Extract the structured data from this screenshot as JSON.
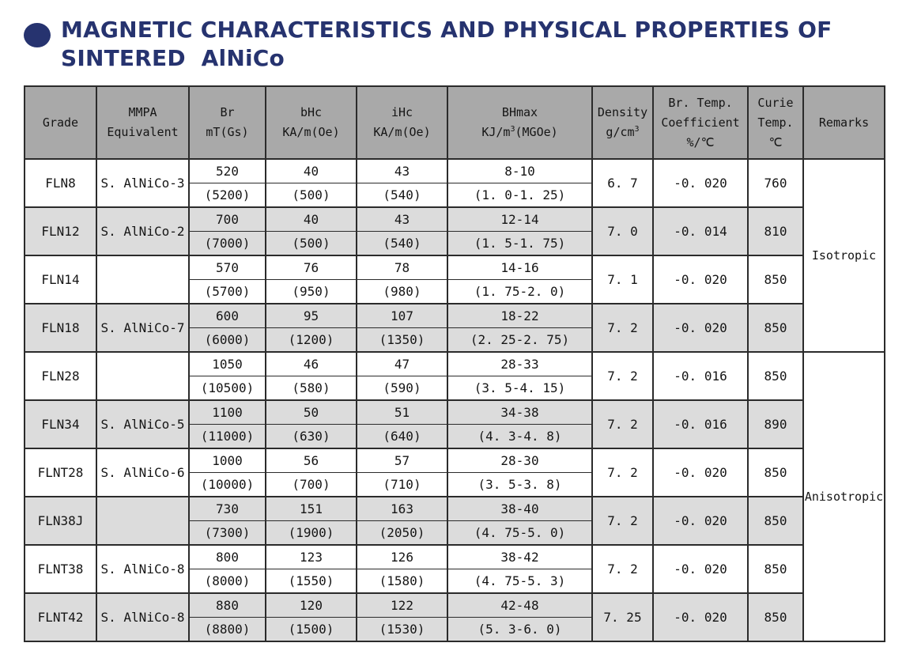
{
  "title": {
    "line1": "MAGNETIC CHARACTERISTICS AND PHYSICAL PROPERTIES OF",
    "line2": "SINTERED  AlNiCo"
  },
  "colors": {
    "title_navy": "#26336f",
    "header_bg": "#a9a9a9",
    "row_shade": "#dcdcdc",
    "border": "#2b2b2b"
  },
  "table": {
    "header": {
      "grade": "Grade",
      "mmpa_line1": "MMPA",
      "mmpa_line2": "Equivalent",
      "br_line1": "Br",
      "br_line2": "mT(Gs)",
      "bhc_line1": "bHc",
      "bhc_line2": "KA/m(Oe)",
      "ihc_line1": "iHc",
      "ihc_line2": "KA/m(Oe)",
      "bhmax_line1": "BHmax",
      "bhmax_unit_pre": "KJ/m",
      "bhmax_sup": "3",
      "bhmax_unit_post": "(MGOe)",
      "density_line1": "Density",
      "density_unit_pre": "g/cm",
      "density_sup": "3",
      "coef_line1": "Br. Temp.",
      "coef_line2": "Coefficient",
      "coef_line3": "%/℃",
      "curie_line1": "Curie",
      "curie_line2": "Temp.",
      "curie_line3": "℃",
      "remarks": "Remarks"
    },
    "rows": [
      {
        "grade": "FLN8",
        "mmpa": "S. AlNiCo-3",
        "br": [
          "520",
          "(5200)"
        ],
        "bhc": [
          "40",
          "(500)"
        ],
        "ihc": [
          "43",
          "(540)"
        ],
        "bhmax": [
          "8-10",
          "(1. 0-1. 25)"
        ],
        "density": "6. 7",
        "coef": "-0. 020",
        "curie": "760"
      },
      {
        "grade": "FLN12",
        "mmpa": "S. AlNiCo-2",
        "br": [
          "700",
          "(7000)"
        ],
        "bhc": [
          "40",
          "(500)"
        ],
        "ihc": [
          "43",
          "(540)"
        ],
        "bhmax": [
          "12-14",
          "(1. 5-1. 75)"
        ],
        "density": "7. 0",
        "coef": "-0. 014",
        "curie": "810"
      },
      {
        "grade": "FLN14",
        "mmpa": "",
        "br": [
          "570",
          "(5700)"
        ],
        "bhc": [
          "76",
          "(950)"
        ],
        "ihc": [
          "78",
          "(980)"
        ],
        "bhmax": [
          "14-16",
          "(1. 75-2. 0)"
        ],
        "density": "7. 1",
        "coef": "-0. 020",
        "curie": "850"
      },
      {
        "grade": "FLN18",
        "mmpa": "S. AlNiCo-7",
        "br": [
          "600",
          "(6000)"
        ],
        "bhc": [
          "95",
          "(1200)"
        ],
        "ihc": [
          "107",
          "(1350)"
        ],
        "bhmax": [
          "18-22",
          "(2. 25-2. 75)"
        ],
        "density": "7. 2",
        "coef": "-0. 020",
        "curie": "850"
      },
      {
        "grade": "FLN28",
        "mmpa": "",
        "br": [
          "1050",
          "(10500)"
        ],
        "bhc": [
          "46",
          "(580)"
        ],
        "ihc": [
          "47",
          "(590)"
        ],
        "bhmax": [
          "28-33",
          "(3. 5-4. 15)"
        ],
        "density": "7. 2",
        "coef": "-0. 016",
        "curie": "850"
      },
      {
        "grade": "FLN34",
        "mmpa": "S. AlNiCo-5",
        "br": [
          "1100",
          "(11000)"
        ],
        "bhc": [
          "50",
          "(630)"
        ],
        "ihc": [
          "51",
          "(640)"
        ],
        "bhmax": [
          "34-38",
          "(4. 3-4. 8)"
        ],
        "density": "7. 2",
        "coef": "-0. 016",
        "curie": "890"
      },
      {
        "grade": "FLNT28",
        "mmpa": "S. AlNiCo-6",
        "br": [
          "1000",
          "(10000)"
        ],
        "bhc": [
          "56",
          "(700)"
        ],
        "ihc": [
          "57",
          "(710)"
        ],
        "bhmax": [
          "28-30",
          "(3. 5-3. 8)"
        ],
        "density": "7. 2",
        "coef": "-0. 020",
        "curie": "850"
      },
      {
        "grade": "FLN38J",
        "mmpa": "",
        "br": [
          "730",
          "(7300)"
        ],
        "bhc": [
          "151",
          "(1900)"
        ],
        "ihc": [
          "163",
          "(2050)"
        ],
        "bhmax": [
          "38-40",
          "(4. 75-5. 0)"
        ],
        "density": "7. 2",
        "coef": "-0. 020",
        "curie": "850"
      },
      {
        "grade": "FLNT38",
        "mmpa": "S. AlNiCo-8",
        "br": [
          "800",
          "(8000)"
        ],
        "bhc": [
          "123",
          "(1550)"
        ],
        "ihc": [
          "126",
          "(1580)"
        ],
        "bhmax": [
          "38-42",
          "(4. 75-5. 3)"
        ],
        "density": "7. 2",
        "coef": "-0. 020",
        "curie": "850"
      },
      {
        "grade": "FLNT42",
        "mmpa": "S. AlNiCo-8",
        "br": [
          "880",
          "(8800)"
        ],
        "bhc": [
          "120",
          "(1500)"
        ],
        "ihc": [
          "122",
          "(1530)"
        ],
        "bhmax": [
          "42-48",
          "(5. 3-6. 0)"
        ],
        "density": "7. 25",
        "coef": "-0. 020",
        "curie": "850"
      }
    ],
    "remarks_groups": [
      {
        "label": "Isotropic",
        "groups": 4
      },
      {
        "label": "Anisotropic",
        "groups": 6
      }
    ]
  }
}
